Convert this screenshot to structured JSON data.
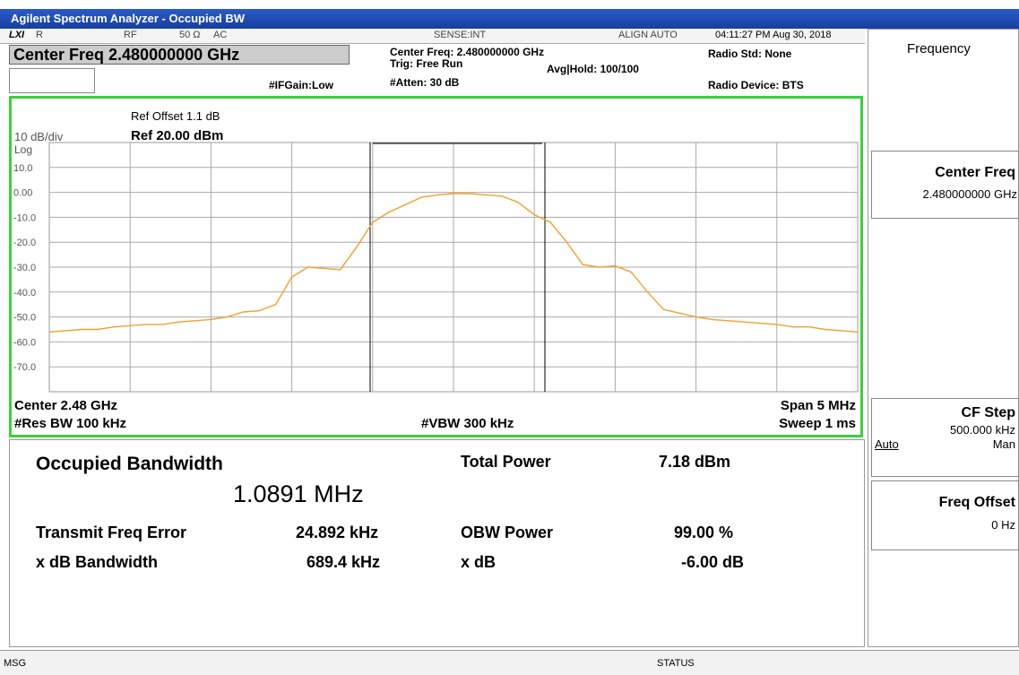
{
  "title_bar": "Agilent Spectrum Analyzer - Occupied BW",
  "status_row": {
    "logo": "LXI",
    "r": "R",
    "rf": "RF",
    "impedance": "50 Ω",
    "coupling": "AC",
    "sense": "SENSE:INT",
    "align": "ALIGN AUTO",
    "datetime": "04:11:27 PM Aug 30, 2018"
  },
  "header": {
    "center_freq_button": "Center Freq 2.480000000 GHz",
    "center_freq": "Center Freq: 2.480000000 GHz",
    "trig": "Trig: Free Run",
    "avg_hold": "Avg|Hold: 100/100",
    "if_gain": "#IFGain:Low",
    "atten": "#Atten: 30 dB",
    "radio_std": "Radio Std: None",
    "radio_device": "Radio Device: BTS"
  },
  "graph": {
    "ref_offset": "Ref Offset 1.1 dB",
    "scale": "10 dB/div",
    "ref_level": "Ref 20.00 dBm",
    "log": "Log",
    "center": "Center 2.48 GHz",
    "span": "Span 5 MHz",
    "res_bw": "#Res BW 100 kHz",
    "vbw": "#VBW 300 kHz",
    "sweep": "Sweep 1 ms"
  },
  "chart_data": {
    "type": "line",
    "color": "#f0a030",
    "ylim": [
      -80,
      20
    ],
    "yticks": [
      {
        "value": 10,
        "label": "10.0"
      },
      {
        "value": 0,
        "label": "0.00"
      },
      {
        "value": -10,
        "label": "-10.0"
      },
      {
        "value": -20,
        "label": "-20.0"
      },
      {
        "value": -30,
        "label": "-30.0"
      },
      {
        "value": -40,
        "label": "-40.0"
      },
      {
        "value": -50,
        "label": "-50.0"
      },
      {
        "value": -60,
        "label": "-60.0"
      },
      {
        "value": -70,
        "label": "-70.0"
      }
    ],
    "grid": true,
    "values": [
      -56,
      -55.5,
      -55,
      -55,
      -54,
      -53.5,
      -53,
      -53,
      -52,
      -51.5,
      -51,
      -50,
      -48,
      -47.5,
      -45,
      -34,
      -30,
      -30.5,
      -31,
      -22,
      -12,
      -8,
      -5,
      -2,
      -1,
      -0.5,
      -0.5,
      -1,
      -1.5,
      -4,
      -9,
      -12,
      -20,
      -29,
      -30,
      -29.5,
      -32,
      -40,
      -47,
      -48.5,
      -50,
      -51,
      -51.5,
      -52,
      -52.5,
      -53,
      -54,
      -54,
      -55,
      -55.5,
      -56
    ]
  },
  "results": {
    "obw_label": "Occupied Bandwidth",
    "obw_value": "1.0891 MHz",
    "total_power_label": "Total Power",
    "total_power": "7.18 dBm",
    "tx_freq_error_label": "Transmit Freq Error",
    "tx_freq_error": "24.892 kHz",
    "obw_power_label": "OBW Power",
    "obw_power": "99.00 %",
    "xdb_bw_label": "x dB Bandwidth",
    "xdb_bw": "689.4 kHz",
    "xdb_label": "x dB",
    "xdb": "-6.00 dB"
  },
  "softkeys": {
    "menu": "Frequency",
    "center_freq": "Center Freq",
    "center_freq_value": "2.480000000 GHz",
    "cf_step": "CF Step",
    "cf_step_value": "500.000 kHz",
    "auto": "Auto",
    "man": "Man",
    "freq_offset": "Freq Offset",
    "freq_offset_value": "0 Hz"
  },
  "footer": {
    "msg": "MSG",
    "status": "STATUS"
  }
}
